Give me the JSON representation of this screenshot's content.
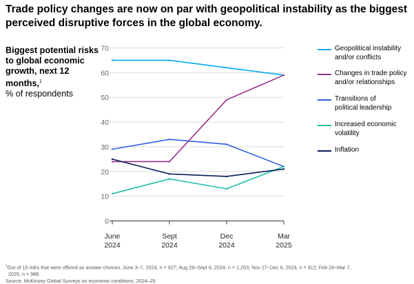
{
  "headline": "Trade policy changes are now on par with geopolitical instability as the biggest perceived disruptive forces in the global economy.",
  "subtitle": {
    "bold": "Biggest potential risks to global economic growth, next 12 months,",
    "sup": "1",
    "normal": "% of respondents"
  },
  "colors": {
    "geopolitical": "#00a9f4",
    "trade": "#9b2f8a",
    "political": "#2f5ee6",
    "volatility": "#1fbfa8",
    "inflation": "#071c57",
    "grid": "#d9d9d9",
    "axis": "#555555"
  },
  "chart_data": {
    "type": "line",
    "categories": [
      [
        "June",
        "2024"
      ],
      [
        "Sept",
        "2024"
      ],
      [
        "Dec",
        "2024"
      ],
      [
        "Mar",
        "2025"
      ]
    ],
    "yticks": [
      0,
      10,
      20,
      30,
      40,
      50,
      60,
      70
    ],
    "ylim": [
      0,
      70
    ],
    "grid": true,
    "legend_position": "right",
    "series": [
      {
        "key": "geopolitical",
        "name": "Geopolitical instability and/or conflicts",
        "name_lines": [
          "Geopolitical instability",
          "and/or conflicts"
        ],
        "values": [
          65,
          65,
          62,
          59
        ]
      },
      {
        "key": "trade",
        "name": "Changes in trade policy and/or relationships",
        "name_lines": [
          "Changes in trade policy",
          "and/or relationships"
        ],
        "values": [
          24,
          24,
          49,
          59
        ]
      },
      {
        "key": "political",
        "name": "Transitions of political leadership",
        "name_lines": [
          "Transitions of",
          "political leadership"
        ],
        "values": [
          29,
          33,
          31,
          22
        ]
      },
      {
        "key": "volatility",
        "name": "Increased economic volatility",
        "name_lines": [
          "Increased economic",
          "volatility"
        ],
        "values": [
          11,
          17,
          13,
          22
        ]
      },
      {
        "key": "inflation",
        "name": "Inflation",
        "name_lines": [
          "Inflation"
        ],
        "values": [
          25,
          19,
          18,
          21
        ]
      }
    ]
  },
  "footnote": {
    "sup": "1",
    "line1": "Out of 15 risks that were offered as answer choices. June 3–7, 2024, n = 927; Aug 28–Sept 6, 2024, n = 1,203; Nov 27–Dec 6, 2024, n = 912; Feb 26–Mar 7,",
    "line2": "2025, n = 988.",
    "source": "Source: McKinsey Global Surveys on economic conditions, 2024–25"
  }
}
